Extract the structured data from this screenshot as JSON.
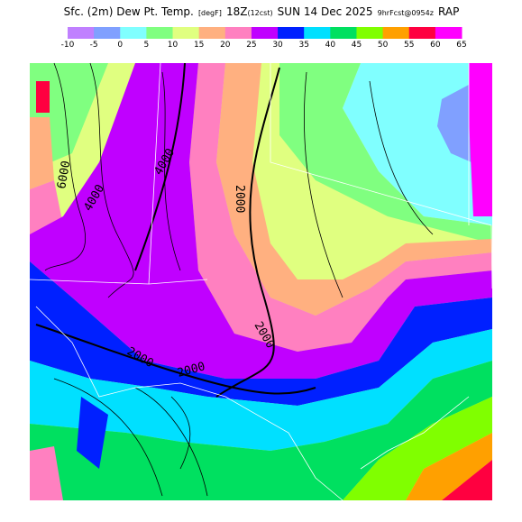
{
  "title": {
    "parts": [
      "Sfc. (2m) Dew Pt. Temp.",
      "[degF]",
      "18Z",
      "(12cst)",
      "SUN 14 Dec 2025",
      "9hrFcst@0954z",
      "RAP"
    ]
  },
  "legend": {
    "colors": [
      "#c080ff",
      "#80a0ff",
      "#80ffff",
      "#80ff80",
      "#e0ff80",
      "#ffb080",
      "#ff80c0",
      "#c000ff",
      "#0020ff",
      "#00e0ff",
      "#00e060",
      "#80ff00",
      "#ffa000",
      "#ff0040",
      "#ff00ff"
    ],
    "labels": [
      -10,
      -5,
      0,
      5,
      10,
      15,
      20,
      25,
      30,
      35,
      40,
      45,
      50,
      55,
      60,
      65
    ]
  },
  "contour_labels": [
    "6000",
    "4000",
    "4000",
    "2000",
    "2000",
    "2000",
    "2000"
  ]
}
